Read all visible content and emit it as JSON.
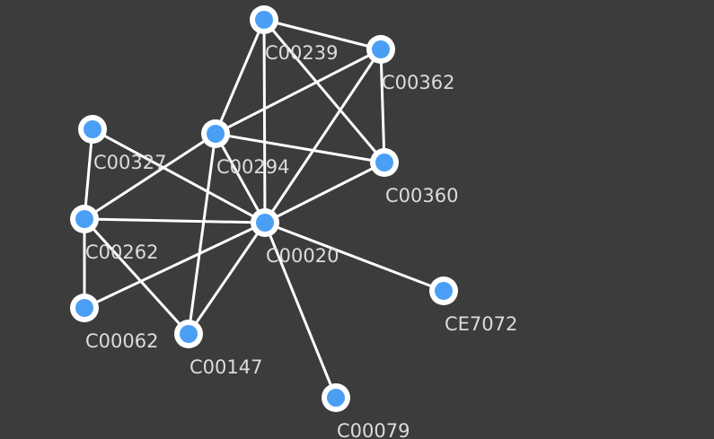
{
  "graph": {
    "node_color": "#4a9ff5",
    "node_outline_color": "#ffffff",
    "edge_color": "#ffffff",
    "label_color": "#dcdcdc",
    "background_color": "#3c3c3c",
    "nodes": [
      {
        "id": "C00239",
        "label": "C00239"
      },
      {
        "id": "C00362",
        "label": "C00362"
      },
      {
        "id": "C00327",
        "label": "C00327"
      },
      {
        "id": "C00294",
        "label": "C00294"
      },
      {
        "id": "C00360",
        "label": "C00360"
      },
      {
        "id": "C00262",
        "label": "C00262"
      },
      {
        "id": "C00020",
        "label": "C00020"
      },
      {
        "id": "CE7072",
        "label": "CE7072"
      },
      {
        "id": "C00062",
        "label": "C00062"
      },
      {
        "id": "C00147",
        "label": "C00147"
      },
      {
        "id": "C00079",
        "label": "C00079"
      }
    ],
    "edges": [
      [
        "C00239",
        "C00362"
      ],
      [
        "C00239",
        "C00294"
      ],
      [
        "C00239",
        "C00020"
      ],
      [
        "C00239",
        "C00360"
      ],
      [
        "C00362",
        "C00294"
      ],
      [
        "C00362",
        "C00360"
      ],
      [
        "C00362",
        "C00020"
      ],
      [
        "C00327",
        "C00262"
      ],
      [
        "C00327",
        "C00020"
      ],
      [
        "C00294",
        "C00360"
      ],
      [
        "C00294",
        "C00262"
      ],
      [
        "C00294",
        "C00020"
      ],
      [
        "C00294",
        "C00147"
      ],
      [
        "C00360",
        "C00020"
      ],
      [
        "C00262",
        "C00020"
      ],
      [
        "C00262",
        "C00062"
      ],
      [
        "C00262",
        "C00147"
      ],
      [
        "C00020",
        "C00062"
      ],
      [
        "C00020",
        "C00147"
      ],
      [
        "C00020",
        "CE7072"
      ],
      [
        "C00020",
        "C00079"
      ]
    ]
  }
}
